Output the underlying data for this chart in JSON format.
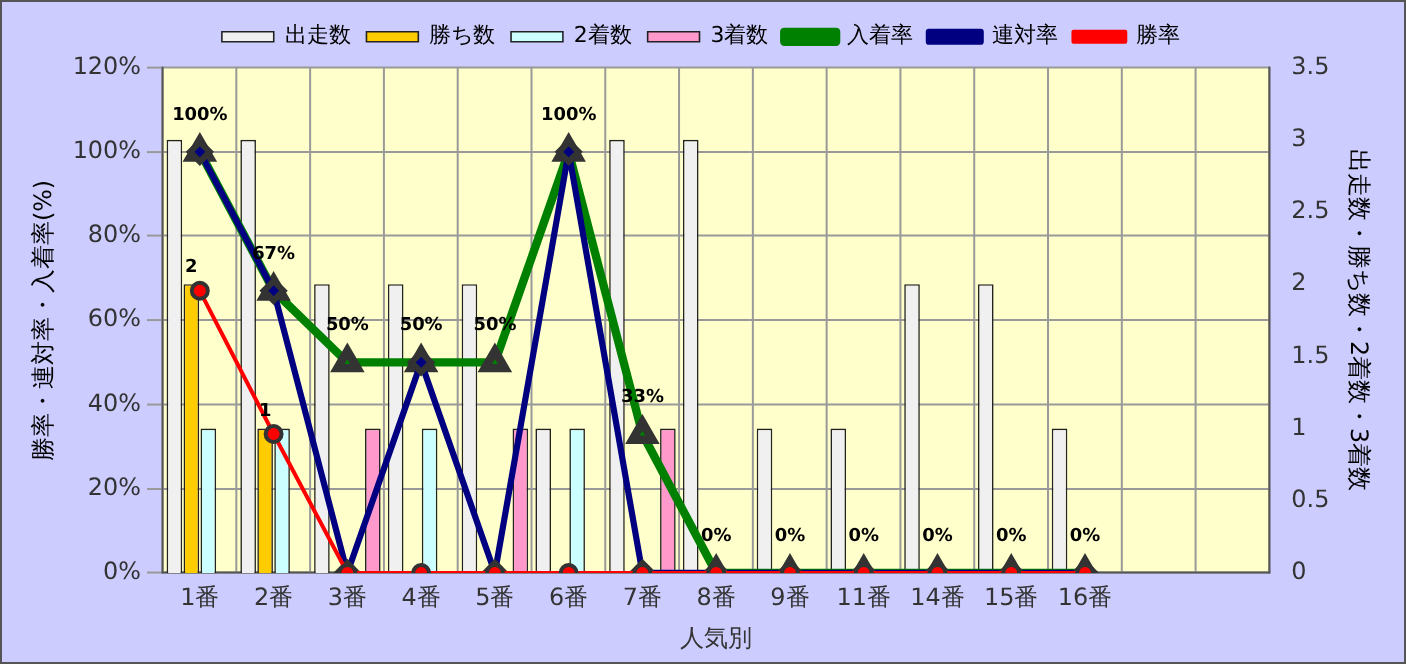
{
  "chart_data": {
    "type": "bar",
    "xlabel": "人気別",
    "ylabel": "勝率・連対率・入着率(%)",
    "y2label": "出走数・勝ち数・2着数・3着数",
    "categories": [
      "1番",
      "2番",
      "3番",
      "4番",
      "5番",
      "6番",
      "7番",
      "8番",
      "9番",
      "11番",
      "14番",
      "15番",
      "16番",
      null,
      null
    ],
    "series": [
      {
        "name": "出走数",
        "axis": "y2",
        "color": "#f0f0f0",
        "values": [
          3,
          3,
          2,
          2,
          2,
          1,
          3,
          3,
          1,
          1,
          2,
          2,
          1,
          null,
          null
        ]
      },
      {
        "name": "勝ち数",
        "axis": "y2",
        "color": "#ffcc00",
        "values": [
          2,
          1,
          0,
          0,
          0,
          0,
          0,
          0,
          0,
          0,
          0,
          0,
          0,
          null,
          null
        ],
        "value_labels": [
          "2",
          "1",
          null,
          null,
          null,
          null,
          null,
          null,
          null,
          null,
          null,
          null,
          null,
          null,
          null
        ]
      },
      {
        "name": "2着数",
        "axis": "y2",
        "color": "#ccffff",
        "values": [
          1,
          1,
          0,
          1,
          0,
          1,
          0,
          0,
          0,
          0,
          0,
          0,
          0,
          null,
          null
        ]
      },
      {
        "name": "3着数",
        "axis": "y2",
        "color": "#ff99cc",
        "values": [
          0,
          0,
          1,
          0,
          1,
          0,
          1,
          0,
          0,
          0,
          0,
          0,
          0,
          null,
          null
        ]
      },
      {
        "name": "入着率",
        "type": "line",
        "marker": "triangle",
        "color": "#008000",
        "values": [
          100,
          67,
          50,
          50,
          50,
          100,
          33,
          0,
          0,
          0,
          0,
          0,
          0,
          null,
          null
        ],
        "value_labels": [
          "100%",
          "67%",
          "50%",
          "50%",
          "50%",
          "100%",
          "33%",
          "0%",
          "0%",
          "0%",
          "0%",
          "0%",
          "0%",
          null,
          null
        ]
      },
      {
        "name": "連対率",
        "type": "line",
        "marker": "diamond",
        "color": "#000080",
        "values": [
          100,
          67,
          0,
          50,
          0,
          100,
          0,
          0,
          0,
          0,
          0,
          0,
          0,
          null,
          null
        ]
      },
      {
        "name": "勝率",
        "type": "line",
        "marker": "circle",
        "color": "#ff0000",
        "values": [
          67,
          33,
          0,
          0,
          0,
          0,
          0,
          0,
          0,
          0,
          0,
          0,
          0,
          null,
          null
        ]
      }
    ],
    "ylim": [
      0,
      120
    ],
    "yticks": [
      {
        "value": 0,
        "label": "0%"
      },
      {
        "value": 20,
        "label": "20%"
      },
      {
        "value": 40,
        "label": "40%"
      },
      {
        "value": 60,
        "label": "60%"
      },
      {
        "value": 80,
        "label": "80%"
      },
      {
        "value": 100,
        "label": "100%"
      },
      {
        "value": 120,
        "label": "120%"
      }
    ],
    "y2lim": [
      0,
      3.5
    ],
    "y2ticks": [
      0,
      0.5,
      1,
      1.5,
      2,
      2.5,
      3,
      3.5
    ],
    "grid": true,
    "legend": "top",
    "line_style": "solid"
  }
}
